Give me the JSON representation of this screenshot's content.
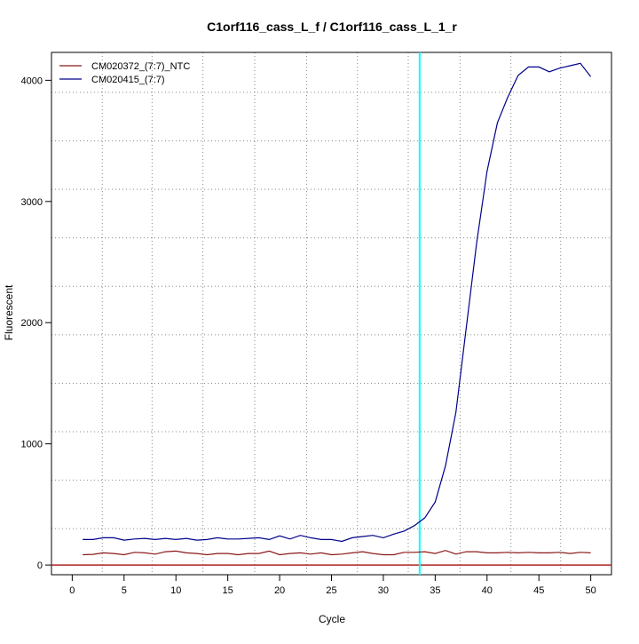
{
  "chart_data": {
    "type": "line",
    "title": "C1orf116_cass_L_f / C1orf116_cass_L_1_r",
    "xlabel": "Cycle",
    "ylabel": "Fluorescent",
    "xlim": [
      -2,
      52
    ],
    "ylim": [
      -80,
      4230
    ],
    "x_ticks": [
      0,
      5,
      10,
      15,
      20,
      25,
      30,
      35,
      40,
      45,
      50
    ],
    "y_ticks": [
      0,
      1000,
      2000,
      3000,
      4000
    ],
    "x_grid": [
      2.9,
      7.7,
      12.6,
      17.6,
      22.6,
      27.5,
      32.4,
      37.4,
      42.3,
      47.1
    ],
    "y_grid": [
      300,
      700,
      1100,
      1500,
      1900,
      2300,
      2700,
      3100,
      3500,
      3900
    ],
    "threshold_cycle": 33.5,
    "baseline_value": 0,
    "legend_position": "top-left",
    "colors": {
      "ntc": "#8b1a1a",
      "sample": "#00008b",
      "threshold": "#00ffff",
      "baseline": "#b22222",
      "grid": "#888888"
    },
    "x": [
      1,
      2,
      3,
      4,
      5,
      6,
      7,
      8,
      9,
      10,
      11,
      12,
      13,
      14,
      15,
      16,
      17,
      18,
      19,
      20,
      21,
      22,
      23,
      24,
      25,
      26,
      27,
      28,
      29,
      30,
      31,
      32,
      33,
      34,
      35,
      36,
      37,
      38,
      39,
      40,
      41,
      42,
      43,
      44,
      45,
      46,
      47,
      48,
      49,
      50
    ],
    "series": [
      {
        "name": "CM020372_(7:7)_NTC",
        "values": [
          85,
          88,
          100,
          95,
          85,
          105,
          100,
          90,
          110,
          115,
          100,
          95,
          85,
          95,
          95,
          85,
          95,
          95,
          115,
          85,
          95,
          100,
          90,
          100,
          85,
          90,
          100,
          110,
          95,
          85,
          85,
          105,
          105,
          110,
          95,
          120,
          90,
          110,
          110,
          100,
          100,
          105,
          100,
          105,
          100,
          100,
          105,
          95,
          105,
          100
        ]
      },
      {
        "name": "CM020415_(7:7)",
        "values": [
          210,
          210,
          225,
          225,
          205,
          215,
          220,
          210,
          220,
          210,
          220,
          205,
          210,
          225,
          215,
          215,
          220,
          225,
          210,
          240,
          215,
          245,
          225,
          210,
          210,
          195,
          225,
          235,
          245,
          225,
          255,
          280,
          325,
          390,
          520,
          820,
          1260,
          1960,
          2660,
          3250,
          3650,
          3860,
          4040,
          4110,
          4110,
          4070,
          4100,
          4120,
          4140,
          4030
        ]
      }
    ]
  }
}
